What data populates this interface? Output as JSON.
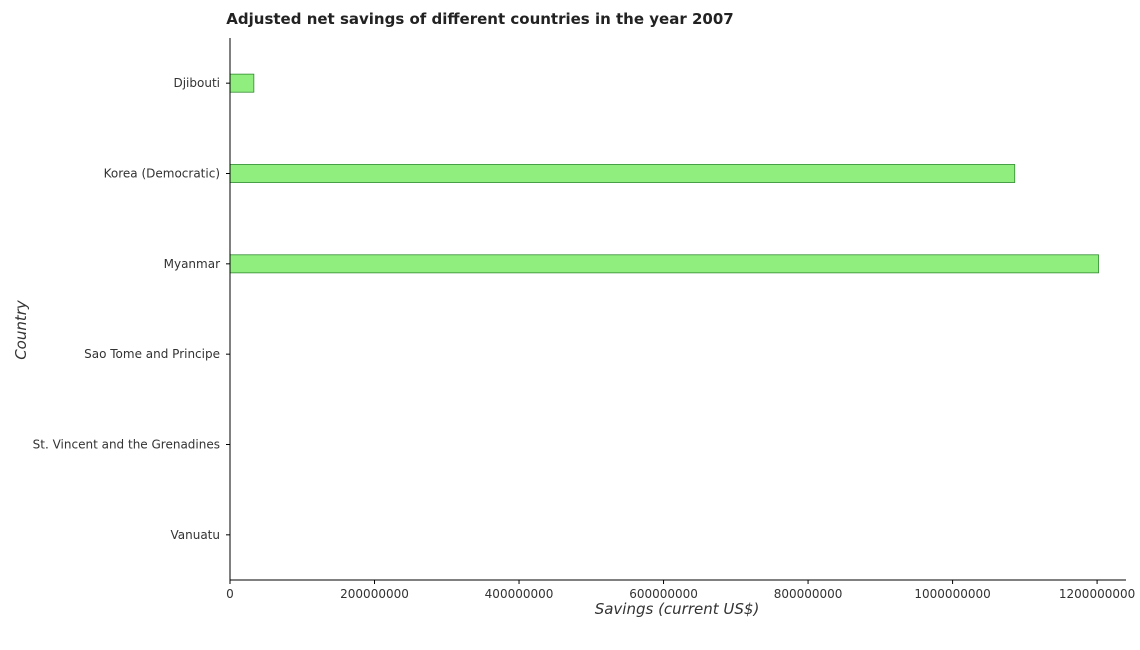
{
  "chart_data": {
    "type": "bar",
    "orientation": "horizontal",
    "title": "Adjusted net savings of different countries in the year 2007",
    "xlabel": "Savings (current US$)",
    "ylabel": "Country",
    "categories": [
      "Djibouti",
      "Korea (Democratic)",
      "Myanmar",
      "Sao Tome and Principe",
      "St. Vincent and the Grenadines",
      "Vanuatu"
    ],
    "values": [
      33000000,
      1086000000,
      1202000000,
      0,
      0,
      0
    ],
    "xlim": [
      0,
      1240000000
    ],
    "xticks": [
      0,
      200000000,
      400000000,
      600000000,
      800000000,
      1000000000,
      1200000000
    ],
    "xtick_labels": [
      "0",
      "200000000",
      "400000000",
      "600000000",
      "800000000",
      "1000000000",
      "1200000000"
    ],
    "grid": false,
    "colors": {
      "bar_fill": "#90ee7e",
      "bar_edge": "#2f8b2f",
      "axis": "#000000"
    }
  }
}
